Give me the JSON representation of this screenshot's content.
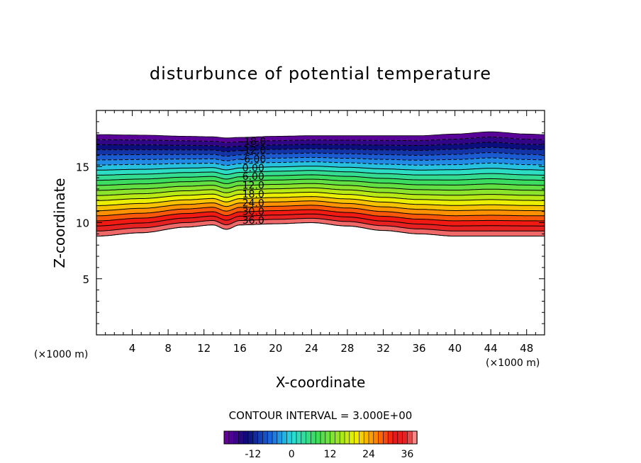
{
  "chart_data": {
    "type": "contour",
    "title": "disturbunce of potential temperature",
    "xlabel": "X-coordinate",
    "ylabel": "Z-coordinate",
    "xunit_left": "(×1000 m)",
    "xunit_right": "(×1000 m)",
    "xlim": [
      0,
      50
    ],
    "ylim": [
      0,
      20
    ],
    "xticks": [
      "4",
      "8",
      "12",
      "16",
      "20",
      "24",
      "28",
      "32",
      "36",
      "40",
      "44",
      "48"
    ],
    "xtick_values": [
      4,
      8,
      12,
      16,
      20,
      24,
      28,
      32,
      36,
      40,
      44,
      48
    ],
    "yticks": [
      "5",
      "10",
      "15"
    ],
    "ytick_values": [
      5,
      10,
      15
    ],
    "contour_interval_label": "CONTOUR INTERVAL = 3.000E+00",
    "contour_interval": 3,
    "levels": [
      -18,
      -15,
      -12,
      -9,
      -6,
      -3,
      0,
      3,
      6,
      9,
      12,
      15,
      18,
      21,
      24,
      27,
      30,
      33,
      36,
      39
    ],
    "contour_labels": [
      {
        "text": "-18.0",
        "value": -18
      },
      {
        "text": "-12.0",
        "value": -12
      },
      {
        "text": "-6.00",
        "value": -6
      },
      {
        "text": "0.00",
        "value": 0
      },
      {
        "text": "6.00",
        "value": 6
      },
      {
        "text": "12.0",
        "value": 12
      },
      {
        "text": "18.0",
        "value": 18
      },
      {
        "text": "24.0",
        "value": 24
      },
      {
        "text": "30.0",
        "value": 30
      },
      {
        "text": "36.0",
        "value": 36
      }
    ],
    "field": {
      "description": "band between z_bottom and z_top; value decreases with height from 39 at bottom to -21 at top",
      "x": [
        0,
        5,
        10,
        13,
        14.5,
        16,
        20,
        24,
        28,
        32,
        36,
        40,
        44,
        48,
        50
      ],
      "z_top": [
        17.85,
        17.8,
        17.7,
        17.65,
        17.55,
        17.6,
        17.7,
        17.75,
        17.75,
        17.75,
        17.75,
        17.9,
        18.1,
        17.9,
        17.85
      ],
      "z_bottom": [
        8.8,
        9.1,
        9.6,
        9.8,
        9.4,
        9.8,
        9.9,
        10.0,
        9.7,
        9.3,
        9.0,
        8.8,
        8.8,
        8.8,
        8.8
      ],
      "top_value": -21,
      "bottom_value": 39
    },
    "colorbar": {
      "ticks": [
        "-12",
        "0",
        "12",
        "24",
        "36"
      ],
      "tick_values": [
        -12,
        0,
        12,
        24,
        36
      ],
      "range": [
        -21,
        39
      ]
    },
    "grid": false
  }
}
